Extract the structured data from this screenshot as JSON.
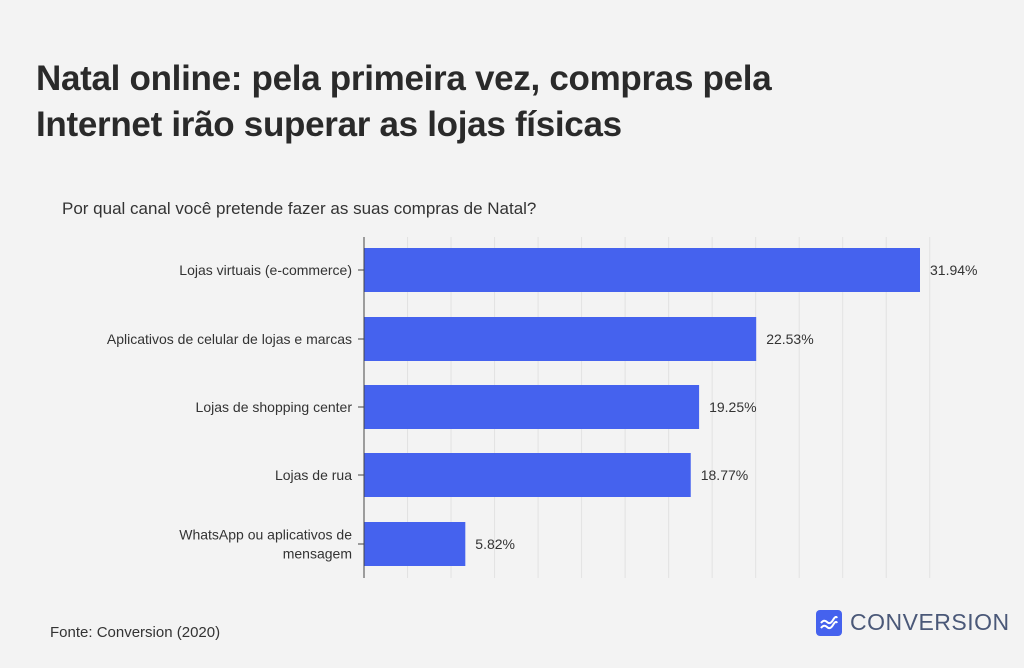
{
  "title_line1": "Natal online: pela primeira vez, compras pela",
  "title_line2": "Internet irão superar as lojas físicas",
  "source": "Fonte: Conversion (2020)",
  "logo_text": "CONVERSION",
  "colors": {
    "bar": "#4562ee",
    "grid": "#e2e2e2",
    "axis": "#444444"
  },
  "chart_data": {
    "type": "bar",
    "orientation": "horizontal",
    "title": "Por qual canal você pretende fazer as suas compras de Natal?",
    "categories": [
      [
        "Lojas virtuais (e-commerce)"
      ],
      [
        "Aplicativos de celular de lojas e marcas"
      ],
      [
        "Lojas de shopping center"
      ],
      [
        "Lojas de rua"
      ],
      [
        "WhatsApp ou aplicativos de",
        "mensagem"
      ]
    ],
    "values": [
      31.94,
      22.53,
      19.25,
      18.77,
      5.82
    ],
    "data_labels": [
      "31.94%",
      "22.53%",
      "19.25%",
      "18.77%",
      "5.82%"
    ],
    "xlim": [
      0,
      32.5
    ],
    "grid_step": 2.5,
    "grid": true,
    "xlabel": "",
    "ylabel": ""
  }
}
